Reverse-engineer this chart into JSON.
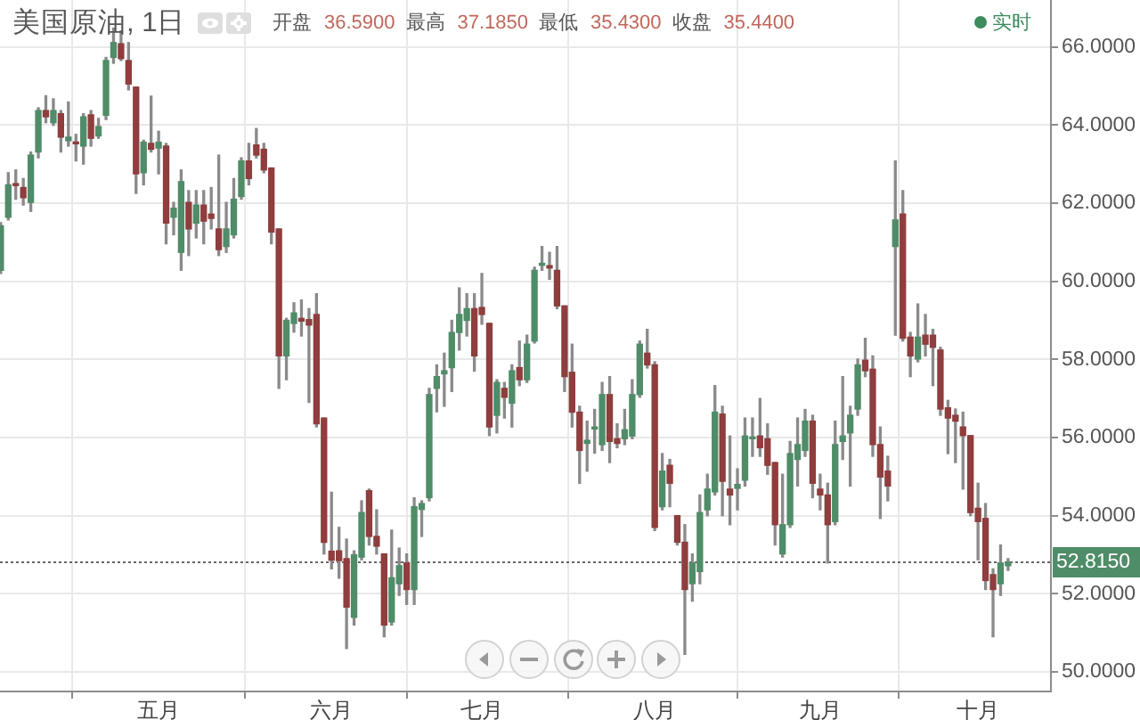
{
  "chart_data": {
    "type": "candlestick",
    "title": "美国原油, 1日",
    "categories": [
      null,
      null,
      null,
      null,
      null,
      null,
      null,
      null,
      null,
      null,
      null,
      null,
      null,
      null,
      null,
      null,
      null,
      null,
      null,
      null,
      null,
      "五月",
      null,
      null,
      null,
      null,
      null,
      null,
      null,
      null,
      null,
      null,
      null,
      null,
      null,
      null,
      null,
      null,
      null,
      null,
      null,
      null,
      null,
      null,
      "六月",
      null,
      null,
      null,
      null,
      null,
      null,
      null,
      null,
      null,
      null,
      null,
      null,
      null,
      null,
      null,
      null,
      null,
      null,
      null,
      "七月",
      null,
      null,
      null,
      null,
      null,
      null,
      null,
      null,
      null,
      null,
      null,
      null,
      null,
      null,
      null,
      null,
      null,
      null,
      null,
      null,
      null,
      null,
      "八月",
      null,
      null,
      null,
      null,
      null,
      null,
      null,
      null,
      null,
      null,
      null,
      null,
      null,
      null,
      null,
      null,
      null,
      null,
      null,
      null,
      null,
      "九月",
      null,
      null,
      null,
      null,
      null,
      null,
      null,
      null,
      null,
      null,
      null,
      null,
      null,
      null,
      null,
      null,
      null,
      null,
      null,
      null,
      "十月",
      null,
      null,
      null,
      null
    ],
    "ohlc": [
      [
        60.28,
        61.5,
        60.2,
        61.42
      ],
      [
        61.64,
        62.78,
        61.57,
        62.47
      ],
      [
        62.5,
        62.85,
        62.1,
        62.45
      ],
      [
        62.4,
        62.63,
        61.95,
        62.14
      ],
      [
        62.02,
        63.31,
        61.79,
        63.23
      ],
      [
        63.31,
        64.44,
        63.16,
        64.37
      ],
      [
        64.37,
        64.75,
        64.06,
        64.21
      ],
      [
        64.06,
        64.67,
        63.99,
        64.37
      ],
      [
        64.29,
        64.37,
        63.31,
        63.69
      ],
      [
        63.6,
        64.59,
        63.46,
        63.69
      ],
      [
        63.56,
        63.76,
        63.08,
        63.52
      ],
      [
        63.46,
        64.29,
        63.0,
        64.21
      ],
      [
        64.26,
        64.37,
        63.46,
        63.66
      ],
      [
        63.72,
        64.17,
        63.66,
        63.96
      ],
      [
        64.25,
        65.73,
        64.14,
        65.65
      ],
      [
        65.73,
        66.48,
        65.58,
        66.11
      ],
      [
        66.08,
        66.41,
        65.65,
        65.7
      ],
      [
        65.65,
        66.11,
        64.9,
        65.05
      ],
      [
        64.97,
        64.97,
        62.25,
        62.75
      ],
      [
        62.78,
        63.61,
        62.47,
        63.56
      ],
      [
        63.53,
        64.74,
        63.31,
        63.38
      ],
      [
        63.41,
        63.84,
        62.75,
        63.56
      ],
      [
        63.46,
        63.53,
        60.96,
        61.49
      ],
      [
        61.64,
        62.02,
        61.19,
        61.87
      ],
      [
        60.74,
        62.85,
        60.28,
        62.55
      ],
      [
        62.02,
        62.32,
        60.66,
        61.34
      ],
      [
        61.49,
        62.32,
        61.11,
        61.95
      ],
      [
        61.95,
        62.32,
        60.96,
        61.54
      ],
      [
        61.72,
        62.4,
        61.34,
        61.61
      ],
      [
        61.34,
        63.23,
        60.66,
        60.81
      ],
      [
        60.89,
        62.02,
        60.74,
        61.34
      ],
      [
        61.19,
        62.63,
        61.11,
        62.1
      ],
      [
        62.17,
        63.16,
        62.1,
        63.08
      ],
      [
        63.08,
        63.53,
        62.47,
        62.63
      ],
      [
        63.49,
        63.91,
        63.16,
        63.23
      ],
      [
        63.38,
        63.53,
        62.78,
        62.85
      ],
      [
        62.9,
        62.9,
        60.96,
        61.26
      ],
      [
        61.34,
        61.34,
        57.26,
        58.09
      ],
      [
        58.09,
        59.05,
        57.48,
        59.0
      ],
      [
        58.92,
        59.45,
        58.7,
        59.19
      ],
      [
        59.05,
        59.52,
        58.6,
        58.98
      ],
      [
        59.02,
        59.3,
        56.9,
        58.88
      ],
      [
        59.15,
        59.68,
        56.27,
        56.35
      ],
      [
        56.5,
        56.5,
        53.02,
        53.32
      ],
      [
        53.09,
        54.6,
        52.64,
        52.86
      ],
      [
        53.1,
        53.7,
        52.4,
        52.85
      ],
      [
        52.9,
        53.4,
        50.6,
        51.66
      ],
      [
        51.4,
        53.1,
        51.2,
        53.0
      ],
      [
        52.94,
        54.38,
        52.87,
        54.08
      ],
      [
        54.64,
        54.68,
        53.25,
        53.47
      ],
      [
        53.47,
        54.15,
        53.02,
        53.22
      ],
      [
        53.02,
        53.02,
        50.9,
        51.2
      ],
      [
        51.28,
        53.63,
        51.2,
        52.41
      ],
      [
        52.26,
        53.17,
        51.96,
        52.72
      ],
      [
        52.79,
        53.02,
        51.73,
        52.11
      ],
      [
        52.11,
        54.46,
        51.73,
        54.23
      ],
      [
        54.16,
        54.38,
        53.47,
        54.31
      ],
      [
        54.46,
        57.26,
        54.38,
        57.1
      ],
      [
        57.26,
        57.86,
        56.66,
        57.56
      ],
      [
        57.63,
        58.16,
        56.8,
        57.71
      ],
      [
        57.79,
        59.0,
        57.18,
        58.69
      ],
      [
        58.69,
        59.83,
        58.24,
        59.15
      ],
      [
        59.0,
        59.68,
        58.6,
        59.3
      ],
      [
        59.3,
        59.68,
        57.7,
        58.09
      ],
      [
        59.33,
        60.2,
        58.9,
        59.15
      ],
      [
        58.92,
        58.92,
        56.05,
        56.27
      ],
      [
        56.57,
        57.48,
        56.12,
        57.41
      ],
      [
        57.26,
        57.41,
        56.5,
        57.03
      ],
      [
        56.88,
        57.86,
        56.27,
        57.71
      ],
      [
        57.79,
        58.47,
        57.33,
        57.48
      ],
      [
        57.48,
        58.62,
        57.41,
        58.39
      ],
      [
        58.47,
        60.36,
        58.42,
        60.28
      ],
      [
        60.41,
        60.89,
        60.28,
        60.46
      ],
      [
        60.4,
        60.74,
        60.05,
        60.34
      ],
      [
        60.28,
        60.89,
        59.3,
        59.37
      ],
      [
        59.37,
        59.37,
        57.18,
        57.56
      ],
      [
        57.67,
        58.39,
        56.27,
        56.65
      ],
      [
        56.65,
        56.8,
        54.83,
        55.67
      ],
      [
        55.85,
        56.42,
        55.14,
        55.93
      ],
      [
        56.22,
        56.72,
        55.6,
        56.27
      ],
      [
        55.82,
        57.41,
        55.67,
        57.1
      ],
      [
        57.1,
        57.56,
        55.36,
        55.9
      ],
      [
        55.97,
        56.35,
        55.74,
        55.85
      ],
      [
        55.97,
        56.72,
        55.82,
        56.2
      ],
      [
        56.04,
        57.48,
        55.97,
        57.1
      ],
      [
        57.1,
        58.47,
        57.03,
        58.39
      ],
      [
        58.16,
        58.77,
        57.78,
        57.86
      ],
      [
        57.86,
        57.94,
        53.62,
        53.7
      ],
      [
        54.23,
        55.59,
        54.15,
        55.14
      ],
      [
        55.29,
        55.44,
        54.23,
        54.83
      ],
      [
        54.0,
        54.0,
        53.25,
        53.32
      ],
      [
        53.32,
        53.77,
        50.45,
        52.11
      ],
      [
        52.26,
        53.02,
        51.81,
        52.79
      ],
      [
        52.57,
        54.53,
        52.26,
        54.08
      ],
      [
        54.15,
        55.06,
        54.0,
        54.68
      ],
      [
        54.61,
        57.33,
        54.53,
        56.65
      ],
      [
        56.6,
        56.8,
        54.0,
        54.88
      ],
      [
        54.68,
        56.04,
        53.77,
        54.53
      ],
      [
        54.7,
        55.2,
        54.15,
        54.8
      ],
      [
        54.91,
        56.5,
        54.76,
        56.04
      ],
      [
        55.97,
        56.5,
        55.52,
        56.0
      ],
      [
        56.04,
        57.0,
        55.52,
        55.74
      ],
      [
        55.97,
        56.35,
        55.06,
        55.29
      ],
      [
        55.36,
        55.36,
        53.25,
        53.77
      ],
      [
        53.02,
        55.06,
        52.94,
        53.77
      ],
      [
        53.77,
        55.9,
        53.7,
        55.59
      ],
      [
        55.44,
        56.5,
        54.76,
        55.82
      ],
      [
        55.67,
        56.72,
        55.52,
        56.42
      ],
      [
        56.42,
        56.57,
        54.46,
        54.83
      ],
      [
        54.68,
        55.06,
        54.15,
        54.53
      ],
      [
        54.53,
        54.83,
        52.79,
        53.77
      ],
      [
        53.85,
        56.42,
        53.77,
        55.82
      ],
      [
        55.9,
        57.56,
        55.44,
        56.04
      ],
      [
        56.12,
        56.8,
        54.76,
        56.57
      ],
      [
        56.73,
        58.01,
        56.57,
        57.86
      ],
      [
        57.98,
        58.54,
        57.56,
        57.71
      ],
      [
        57.75,
        58.09,
        55.52,
        55.82
      ],
      [
        55.82,
        56.27,
        53.93,
        54.99
      ],
      [
        55.14,
        55.52,
        54.38,
        54.76
      ],
      [
        60.89,
        63.08,
        58.62,
        61.57
      ],
      [
        61.72,
        62.32,
        58.47,
        58.54
      ],
      [
        58.57,
        58.69,
        57.56,
        58.09
      ],
      [
        58.01,
        59.42,
        57.94,
        58.57
      ],
      [
        58.62,
        59.15,
        58.09,
        58.39
      ],
      [
        58.62,
        58.77,
        57.33,
        58.31
      ],
      [
        58.24,
        58.31,
        56.57,
        56.73
      ],
      [
        56.76,
        56.95,
        55.59,
        56.5
      ],
      [
        56.57,
        56.73,
        55.36,
        56.42
      ],
      [
        56.27,
        56.65,
        54.68,
        56.05
      ],
      [
        56.05,
        56.05,
        54.0,
        54.08
      ],
      [
        54.19,
        54.83,
        52.87,
        53.85
      ],
      [
        53.93,
        54.31,
        52.11,
        52.34
      ],
      [
        52.49,
        52.64,
        50.9,
        52.11
      ],
      [
        52.26,
        53.25,
        51.96,
        52.79
      ],
      [
        52.72,
        52.9,
        52.6,
        52.815
      ]
    ],
    "colors": [
      "#4f8c68",
      "#4f8c68",
      "#8f3d3d",
      "#8f3d3d",
      "#4f8c68",
      "#4f8c68",
      "#8f3d3d",
      "#4f8c68",
      "#8f3d3d",
      "#4f8c68",
      "#8f3d3d",
      "#4f8c68",
      "#8f3d3d",
      "#4f8c68",
      "#4f8c68",
      "#4f8c68",
      "#8f3d3d",
      "#8f3d3d",
      "#8f3d3d",
      "#4f8c68",
      "#8f3d3d",
      "#4f8c68",
      "#8f3d3d",
      "#4f8c68",
      "#4f8c68",
      "#8f3d3d",
      "#4f8c68",
      "#8f3d3d",
      "#8f3d3d",
      "#8f3d3d",
      "#4f8c68",
      "#4f8c68",
      "#4f8c68",
      "#8f3d3d",
      "#8f3d3d",
      "#8f3d3d",
      "#8f3d3d",
      "#8f3d3d",
      "#4f8c68",
      "#4f8c68",
      "#8f3d3d",
      "#8f3d3d",
      "#8f3d3d",
      "#8f3d3d",
      "#8f3d3d",
      "#8f3d3d",
      "#8f3d3d",
      "#4f8c68",
      "#4f8c68",
      "#8f3d3d",
      "#8f3d3d",
      "#8f3d3d",
      "#4f8c68",
      "#4f8c68",
      "#8f3d3d",
      "#4f8c68",
      "#4f8c68",
      "#4f8c68",
      "#4f8c68",
      "#4f8c68",
      "#4f8c68",
      "#4f8c68",
      "#4f8c68",
      "#8f3d3d",
      "#8f3d3d",
      "#8f3d3d",
      "#4f8c68",
      "#8f3d3d",
      "#4f8c68",
      "#8f3d3d",
      "#4f8c68",
      "#4f8c68",
      "#4f8c68",
      "#8f3d3d",
      "#8f3d3d",
      "#8f3d3d",
      "#8f3d3d",
      "#8f3d3d",
      "#4f8c68",
      "#4f8c68",
      "#4f8c68",
      "#8f3d3d",
      "#8f3d3d",
      "#4f8c68",
      "#4f8c68",
      "#4f8c68",
      "#8f3d3d",
      "#8f3d3d",
      "#4f8c68",
      "#8f3d3d",
      "#8f3d3d",
      "#8f3d3d",
      "#4f8c68",
      "#4f8c68",
      "#4f8c68",
      "#4f8c68",
      "#8f3d3d",
      "#8f3d3d",
      "#4f8c68",
      "#4f8c68",
      "#4f8c68",
      "#8f3d3d",
      "#8f3d3d",
      "#8f3d3d",
      "#4f8c68",
      "#4f8c68",
      "#4f8c68",
      "#4f8c68",
      "#8f3d3d",
      "#8f3d3d",
      "#8f3d3d",
      "#4f8c68",
      "#4f8c68",
      "#4f8c68",
      "#4f8c68",
      "#8f3d3d",
      "#8f3d3d",
      "#8f3d3d",
      "#8f3d3d",
      "#4f8c68",
      "#8f3d3d",
      "#8f3d3d",
      "#4f8c68",
      "#8f3d3d",
      "#8f3d3d",
      "#8f3d3d",
      "#8f3d3d",
      "#8f3d3d",
      "#8f3d3d",
      "#8f3d3d",
      "#8f3d3d",
      "#8f3d3d",
      "#8f3d3d",
      "#4f8c68",
      "#4f8c68"
    ],
    "ylim": [
      49.5,
      67.2
    ],
    "yticks": [
      {
        "value": 50,
        "label": "50.0000"
      },
      {
        "value": 52,
        "label": "52.0000"
      },
      {
        "value": 54,
        "label": "54.0000"
      },
      {
        "value": 56,
        "label": "56.0000"
      },
      {
        "value": 58,
        "label": "58.0000"
      },
      {
        "value": 60,
        "label": "60.0000"
      },
      {
        "value": 62,
        "label": "62.0000"
      },
      {
        "value": 64,
        "label": "64.0000"
      },
      {
        "value": 66,
        "label": "66.0000"
      }
    ],
    "grid": true,
    "ref_lines": [
      {
        "axis": "y",
        "value": 52.815,
        "label": "52.8150",
        "color": "#666666",
        "line_style": "dotted"
      }
    ],
    "annotations": [
      "开盘",
      "36.5900",
      "最高",
      "37.1850",
      "最低",
      "35.4300",
      "收盘",
      "35.4400",
      "实时"
    ]
  }
}
